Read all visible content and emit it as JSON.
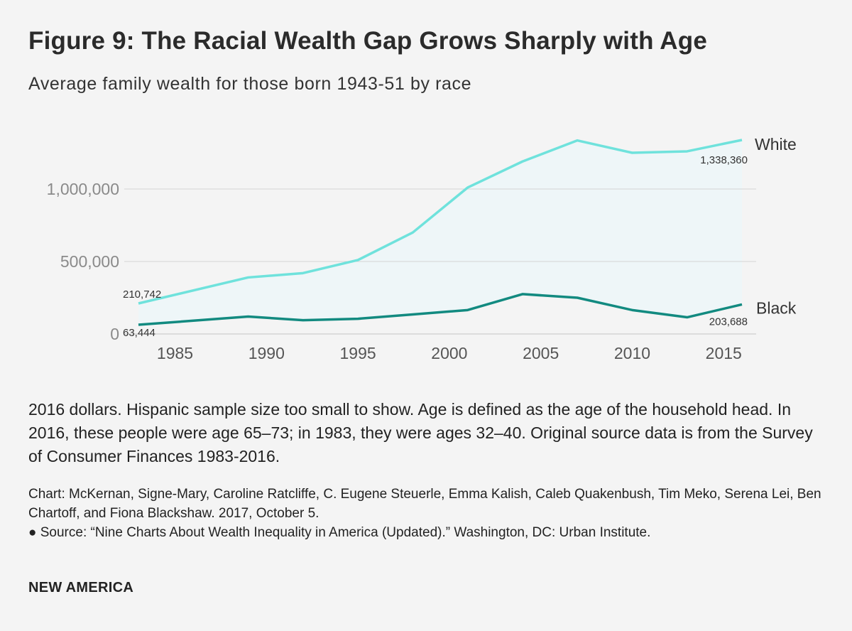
{
  "header": {
    "title": "Figure 9: The Racial Wealth Gap Grows Sharply with Age",
    "subtitle": "Average family wealth for those born 1943-51 by race"
  },
  "notes": "2016 dollars. Hispanic sample size too small to show. Age is defined as the age of the household head. In 2016, these people were age 65–73; in 1983, they were ages 32–40. Original source data is from the Survey of Consumer Finances 1983-2016.",
  "credits": {
    "chart_line": "Chart: McKernan, Signe-Mary, Caroline Ratcliffe, C. Eugene Steuerle, Emma Kalish, Caleb Quakenbush, Tim Meko, Serena Lei, Ben Chartoff, and Fiona Blackshaw. 2017, October 5.",
    "source_line": "● Source: “Nine Charts About Wealth Inequality in America (Updated).” Washington, DC: Urban Institute."
  },
  "brand": "NEW AMERICA",
  "colors": {
    "white": "#6fe2dc",
    "black": "#128a80",
    "fill": "#eef6f8",
    "grid": "#d4d4d4"
  },
  "chart_data": {
    "type": "line",
    "title": "Figure 9: The Racial Wealth Gap Grows Sharply with Age",
    "subtitle": "Average family wealth for those born 1943-51 by race",
    "xlabel": "",
    "ylabel": "",
    "x": [
      1983,
      1989,
      1992,
      1995,
      1998,
      2001,
      2004,
      2007,
      2010,
      2013,
      2016
    ],
    "xticks": [
      1985,
      1990,
      1995,
      2000,
      2005,
      2010,
      2015
    ],
    "xlim": [
      1983,
      2016
    ],
    "yticks": [
      0,
      500000,
      1000000
    ],
    "ytick_labels": [
      "0",
      "500,000",
      "1,000,000"
    ],
    "ylim": [
      0,
      1400000
    ],
    "grid": true,
    "series": [
      {
        "name": "White",
        "values": [
          210742,
          390000,
          420000,
          510000,
          700000,
          1010000,
          1190000,
          1335000,
          1250000,
          1260000,
          1338360
        ],
        "start_label": "210,742",
        "end_label": "1,338,360"
      },
      {
        "name": "Black",
        "values": [
          63444,
          120000,
          95000,
          105000,
          135000,
          165000,
          275000,
          250000,
          165000,
          115000,
          203688
        ],
        "start_label": "63,444",
        "end_label": "203,688"
      }
    ]
  }
}
